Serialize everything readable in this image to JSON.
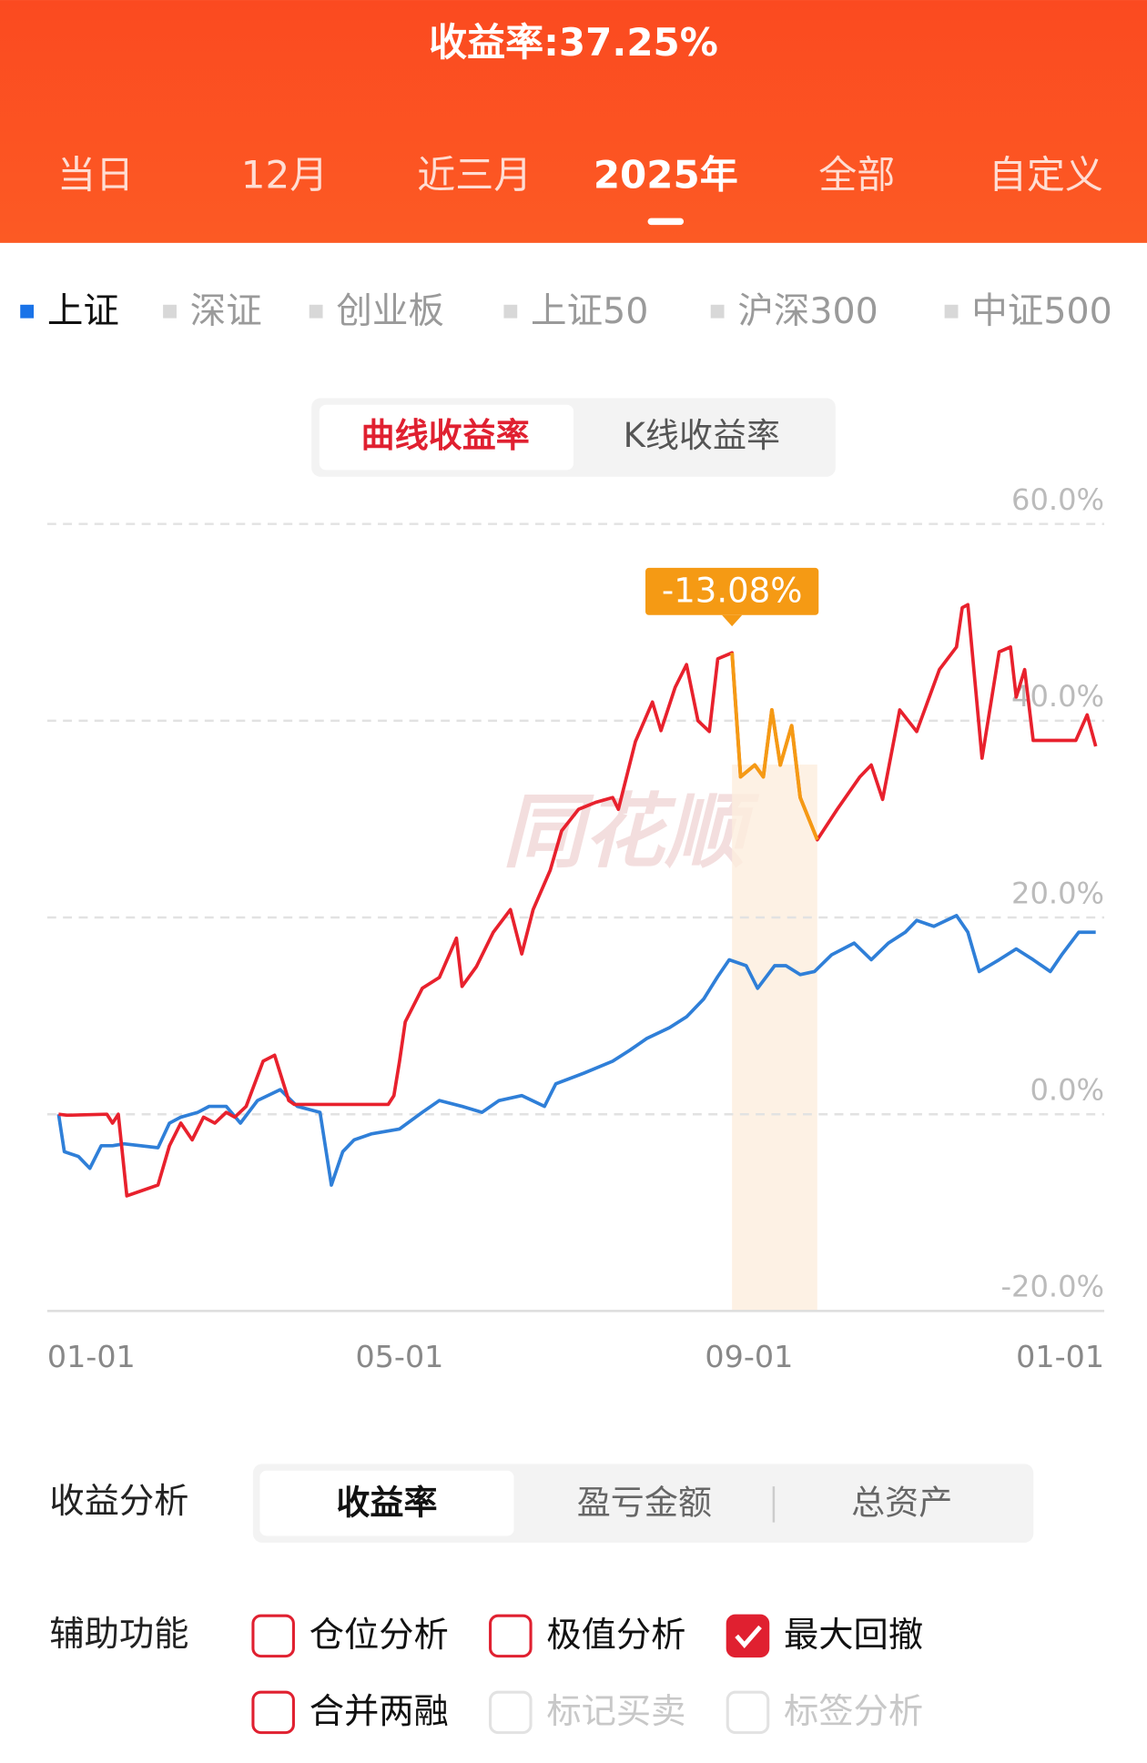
{
  "header": {
    "title": "收益率:37.25%",
    "tabs": [
      "当日",
      "12月",
      "近三月",
      "2025年",
      "全部",
      "自定义"
    ],
    "active_tab": 3
  },
  "index_tabs": {
    "items": [
      "上证",
      "深证",
      "创业板",
      "上证50",
      "沪深300",
      "中证500"
    ],
    "active": 0
  },
  "chart_toggle": {
    "items": [
      "曲线收益率",
      "K线收益率"
    ],
    "active": 0
  },
  "chart_data": {
    "type": "line",
    "watermark": "同花顺",
    "xlim": [
      -4,
      368
    ],
    "xticks": [
      {
        "value": 0,
        "label": "01-01"
      },
      {
        "value": 120,
        "label": "05-01"
      },
      {
        "value": 243,
        "label": "09-01"
      },
      {
        "value": 365,
        "label": "01-01"
      }
    ],
    "ylim": [
      -20,
      60
    ],
    "yticks": [
      {
        "value": -20,
        "label": "-20.0%"
      },
      {
        "value": 0,
        "label": "0.0%"
      },
      {
        "value": 20,
        "label": "20.0%"
      },
      {
        "value": 40,
        "label": "40.0%"
      },
      {
        "value": 60,
        "label": "60.0%"
      }
    ],
    "grid": true,
    "series": [
      {
        "color": "#e8212d",
        "x": [
          0,
          3,
          17,
          19,
          21,
          24,
          35,
          39,
          43,
          47,
          51,
          55,
          59,
          62,
          66,
          72,
          76,
          81,
          83,
          116,
          118,
          120,
          122,
          128,
          134,
          140,
          142,
          147,
          153,
          159,
          163,
          167,
          173,
          177,
          183,
          189,
          195,
          197,
          203,
          209,
          212,
          217,
          221,
          225,
          229,
          232,
          237,
          240,
          245,
          248,
          251,
          254,
          258,
          261,
          267,
          274,
          282,
          286,
          290,
          296,
          302,
          310,
          316,
          318,
          320,
          325,
          331,
          335,
          337,
          340,
          343,
          358,
          362,
          365
        ],
        "values": [
          0,
          -0.1,
          0,
          -0.9,
          0,
          -8.3,
          -7.2,
          -3.2,
          -0.9,
          -2.6,
          -0.3,
          -0.9,
          0.2,
          -0.3,
          0.8,
          5.4,
          6,
          1.4,
          1,
          1,
          1.9,
          5.4,
          9.4,
          12.8,
          13.9,
          17.9,
          13,
          15,
          18.5,
          20.8,
          16.3,
          20.8,
          24.8,
          28.8,
          31,
          31.7,
          32.2,
          31,
          37.9,
          41.9,
          39,
          43.4,
          45.7,
          40,
          38.9,
          46.3,
          46.9,
          34.3,
          35.5,
          34.3,
          41.1,
          35.5,
          39.5,
          32.2,
          27.9,
          31,
          34.3,
          35.5,
          32,
          41.1,
          38.9,
          45.2,
          47.5,
          51.5,
          51.8,
          36.2,
          47,
          47.5,
          42.4,
          45.2,
          38,
          38,
          40.6,
          37.4
        ]
      },
      {
        "color": "#2f7fd8",
        "x": [
          0,
          2,
          7,
          11,
          15,
          19,
          23,
          35,
          39,
          43,
          49,
          53,
          59,
          64,
          70,
          78,
          84,
          92,
          96,
          100,
          104,
          110,
          120,
          128,
          134,
          142,
          149,
          155,
          163,
          171,
          175,
          185,
          195,
          201,
          207,
          215,
          221,
          227,
          232,
          236,
          242,
          246,
          252,
          256,
          261,
          266,
          272,
          280,
          286,
          292,
          298,
          302,
          308,
          316,
          320,
          324,
          331,
          337,
          343,
          349,
          353,
          359,
          365
        ],
        "values": [
          0,
          -3.8,
          -4.3,
          -5.5,
          -3.2,
          -3.2,
          -3,
          -3.4,
          -0.9,
          -0.3,
          0.2,
          0.8,
          0.8,
          -0.9,
          1.4,
          2.5,
          0.8,
          0.2,
          -7.2,
          -3.8,
          -2.6,
          -2,
          -1.5,
          0.2,
          1.4,
          0.8,
          0.2,
          1.4,
          1.9,
          0.8,
          3.1,
          4.2,
          5.4,
          6.5,
          7.7,
          8.8,
          9.9,
          11.7,
          14,
          15.7,
          15.1,
          12.8,
          15.1,
          15.1,
          14.2,
          14.5,
          16.2,
          17.4,
          15.7,
          17.4,
          18.5,
          19.7,
          19.1,
          20.2,
          18.5,
          14.5,
          15.7,
          16.8,
          15.7,
          14.5,
          16.2,
          18.5,
          18.5
        ]
      }
    ],
    "highlight": {
      "label": "-13.08%",
      "x": [
        237,
        267
      ],
      "color": "#f59a14"
    }
  },
  "analysis": {
    "label": "收益分析",
    "tabs": [
      "收益率",
      "盈亏金额",
      "总资产"
    ],
    "active": 0
  },
  "aux": {
    "label": "辅助功能",
    "options": [
      {
        "text": "仓位分析",
        "checked": false,
        "enabled": true
      },
      {
        "text": "极值分析",
        "checked": false,
        "enabled": true
      },
      {
        "text": "最大回撤",
        "checked": true,
        "enabled": true
      },
      {
        "text": "合并两融",
        "checked": false,
        "enabled": true
      },
      {
        "text": "标记买卖",
        "checked": false,
        "enabled": false
      },
      {
        "text": "标签分析",
        "checked": false,
        "enabled": false
      }
    ]
  }
}
